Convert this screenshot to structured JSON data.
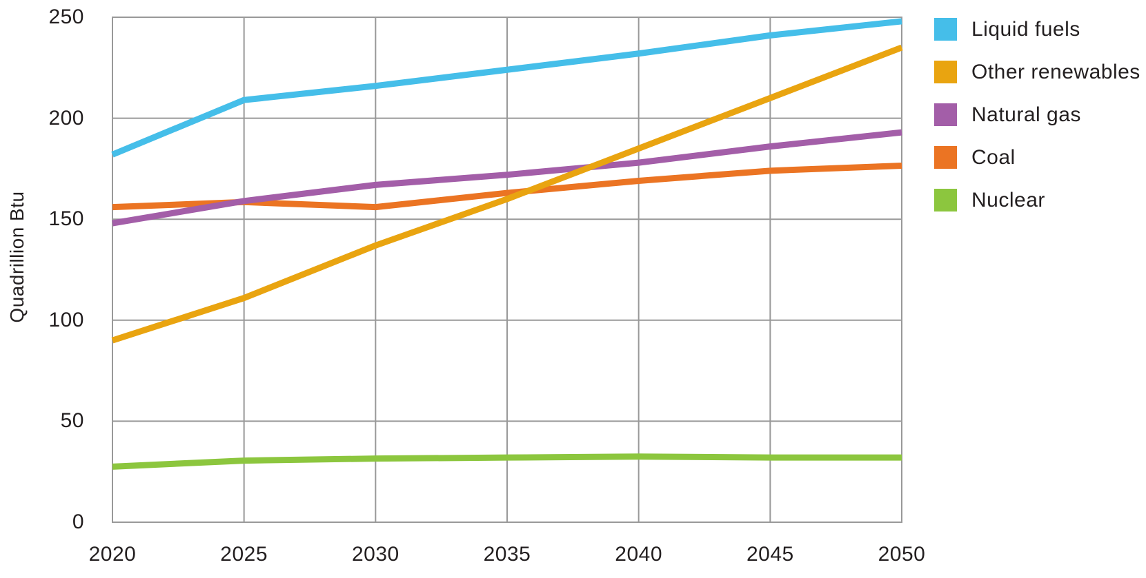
{
  "chart_data": {
    "type": "line",
    "ylabel": "Quadrillion Btu",
    "x": [
      2020,
      2025,
      2030,
      2035,
      2040,
      2045,
      2050
    ],
    "x_tick_labels": [
      "2020",
      "2025",
      "2030",
      "2035",
      "2040",
      "2045",
      "2050"
    ],
    "y_ticks": [
      0,
      50,
      100,
      150,
      200,
      250
    ],
    "y_tick_labels": [
      "0",
      "50",
      "100",
      "150",
      "200",
      "250"
    ],
    "ylim": [
      0,
      250
    ],
    "xlim": [
      2020,
      2050
    ],
    "grid": true,
    "legend_position": "right",
    "colors": {
      "background": "#ffffff",
      "grid": "#999999",
      "text": "#231f20"
    },
    "series": [
      {
        "name": "Liquid fuels",
        "color": "#45bee9",
        "values": [
          182,
          209,
          216,
          224,
          232,
          241,
          248
        ]
      },
      {
        "name": "Other renewables",
        "color": "#e9a410",
        "values": [
          90,
          111,
          137,
          160,
          185,
          210,
          235
        ]
      },
      {
        "name": "Natural gas",
        "color": "#a35ea8",
        "values": [
          148,
          159,
          167,
          172,
          178,
          186,
          193
        ]
      },
      {
        "name": "Coal",
        "color": "#eb7423",
        "values": [
          156,
          158.5,
          156,
          163,
          169,
          174,
          176.5
        ]
      },
      {
        "name": "Nuclear",
        "color": "#8cc63e",
        "values": [
          27.5,
          30.5,
          31.5,
          32,
          32.5,
          32,
          32
        ]
      }
    ]
  }
}
